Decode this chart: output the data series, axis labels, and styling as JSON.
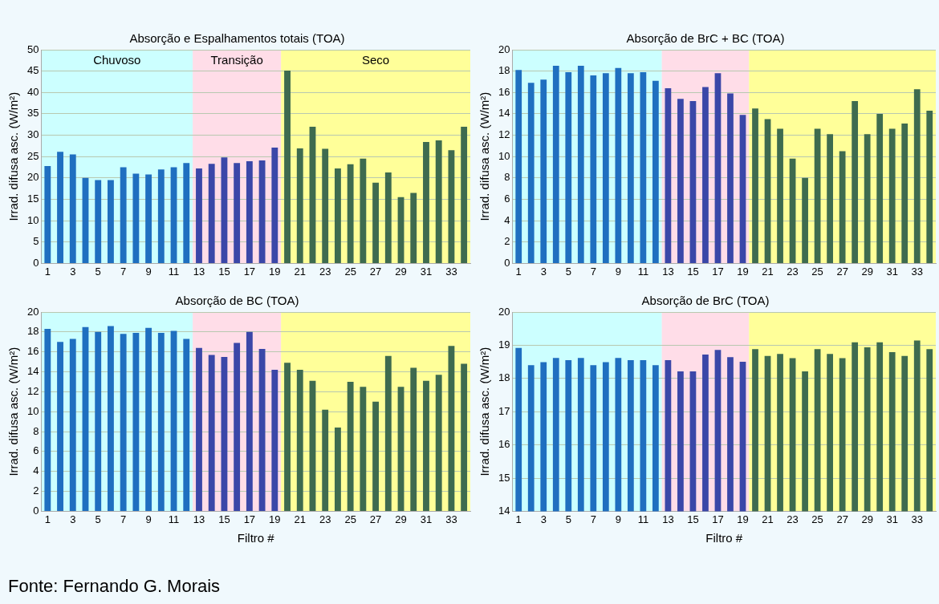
{
  "chart_data": [
    {
      "type": "bar",
      "title": "Absorção e Espalhamentos totais (TOA)",
      "ylabel": "Irrad. difusa asc. (W/m²)",
      "x": [
        1,
        2,
        3,
        4,
        5,
        6,
        7,
        8,
        9,
        10,
        11,
        12,
        13,
        14,
        15,
        16,
        17,
        18,
        19,
        20,
        21,
        22,
        23,
        24,
        25,
        26,
        27,
        28,
        29,
        30,
        31,
        32,
        33,
        34
      ],
      "values": [
        22.8,
        26.1,
        25.5,
        20.0,
        19.5,
        19.5,
        22.5,
        21.0,
        20.8,
        22.0,
        22.5,
        23.5,
        22.2,
        23.3,
        24.8,
        23.5,
        23.9,
        24.1,
        27.1,
        45.1,
        26.9,
        32.0,
        26.8,
        22.2,
        23.2,
        24.5,
        18.9,
        21.3,
        15.5,
        16.5,
        28.4,
        28.8,
        26.5,
        32.0
      ],
      "colors": [
        "#1f6fc0",
        "#1f6fc0",
        "#1f6fc0",
        "#1f6fc0",
        "#1f6fc0",
        "#1f6fc0",
        "#1f6fc0",
        "#1f6fc0",
        "#1f6fc0",
        "#1f6fc0",
        "#1f6fc0",
        "#1f6fc0",
        "#3a47a8",
        "#3a47a8",
        "#3a47a8",
        "#3a47a8",
        "#3a47a8",
        "#3a47a8",
        "#3a47a8",
        "#3e6b4f",
        "#3e6b4f",
        "#3e6b4f",
        "#3e6b4f",
        "#3e6b4f",
        "#3e6b4f",
        "#3e6b4f",
        "#3e6b4f",
        "#3e6b4f",
        "#3e6b4f",
        "#3e6b4f",
        "#3e6b4f",
        "#3e6b4f",
        "#3e6b4f",
        "#3e6b4f"
      ],
      "xlim": [
        0.5,
        34.5
      ],
      "xticks": [
        1,
        3,
        5,
        7,
        9,
        11,
        13,
        15,
        17,
        19,
        21,
        23,
        25,
        27,
        29,
        31,
        33
      ],
      "ylim": [
        0,
        50
      ],
      "yticks": [
        0,
        5,
        10,
        15,
        20,
        25,
        30,
        35,
        40,
        45,
        50
      ],
      "grid": "y",
      "legend": false,
      "bands": [
        {
          "axis": "x",
          "from": 0.5,
          "to": 12.5,
          "label": "Chuvoso",
          "color": "#ccffff"
        },
        {
          "axis": "x",
          "from": 12.5,
          "to": 19.5,
          "label": "Transição",
          "color": "#ffdde8"
        },
        {
          "axis": "x",
          "from": 19.5,
          "to": 34.5,
          "label": "Seco",
          "color": "#ffff99"
        }
      ]
    },
    {
      "type": "bar",
      "title": "Absorção de BrC + BC (TOA)",
      "ylabel": "Irrad. difusa asc. (W/m²)",
      "x": [
        1,
        2,
        3,
        4,
        5,
        6,
        7,
        8,
        9,
        10,
        11,
        12,
        13,
        14,
        15,
        16,
        17,
        18,
        19,
        20,
        21,
        22,
        23,
        24,
        25,
        26,
        27,
        28,
        29,
        30,
        31,
        32,
        33,
        34
      ],
      "values": [
        18.1,
        16.9,
        17.2,
        18.5,
        17.9,
        18.5,
        17.6,
        17.8,
        18.3,
        17.8,
        17.9,
        17.1,
        16.4,
        15.4,
        15.2,
        16.5,
        17.8,
        15.9,
        13.9,
        14.5,
        13.5,
        12.6,
        9.8,
        8.0,
        12.6,
        12.1,
        10.5,
        15.2,
        12.1,
        14.0,
        12.6,
        13.1,
        16.3,
        14.3
      ],
      "colors": [
        "#1f6fc0",
        "#1f6fc0",
        "#1f6fc0",
        "#1f6fc0",
        "#1f6fc0",
        "#1f6fc0",
        "#1f6fc0",
        "#1f6fc0",
        "#1f6fc0",
        "#1f6fc0",
        "#1f6fc0",
        "#1f6fc0",
        "#3a47a8",
        "#3a47a8",
        "#3a47a8",
        "#3a47a8",
        "#3a47a8",
        "#3a47a8",
        "#3a47a8",
        "#3e6b4f",
        "#3e6b4f",
        "#3e6b4f",
        "#3e6b4f",
        "#3e6b4f",
        "#3e6b4f",
        "#3e6b4f",
        "#3e6b4f",
        "#3e6b4f",
        "#3e6b4f",
        "#3e6b4f",
        "#3e6b4f",
        "#3e6b4f",
        "#3e6b4f",
        "#3e6b4f"
      ],
      "xlim": [
        0.5,
        34.5
      ],
      "xticks": [
        1,
        3,
        5,
        7,
        9,
        11,
        13,
        15,
        17,
        19,
        21,
        23,
        25,
        27,
        29,
        31,
        33
      ],
      "ylim": [
        0,
        20
      ],
      "yticks": [
        0,
        2,
        4,
        6,
        8,
        10,
        12,
        14,
        16,
        18,
        20
      ],
      "grid": "y",
      "legend": false,
      "bands": [
        {
          "axis": "x",
          "from": 0.5,
          "to": 12.5,
          "color": "#ccffff"
        },
        {
          "axis": "x",
          "from": 12.5,
          "to": 19.5,
          "color": "#ffdde8"
        },
        {
          "axis": "x",
          "from": 19.5,
          "to": 34.5,
          "color": "#ffff99"
        }
      ]
    },
    {
      "type": "bar",
      "title": "Absorção de BC (TOA)",
      "ylabel": "Irrad. difusa asc. (W/m²)",
      "xlabel": "Filtro #",
      "x": [
        1,
        2,
        3,
        4,
        5,
        6,
        7,
        8,
        9,
        10,
        11,
        12,
        13,
        14,
        15,
        16,
        17,
        18,
        19,
        20,
        21,
        22,
        23,
        24,
        25,
        26,
        27,
        28,
        29,
        30,
        31,
        32,
        33,
        34
      ],
      "values": [
        18.3,
        17.0,
        17.3,
        18.5,
        18.0,
        18.6,
        17.8,
        17.9,
        18.4,
        17.9,
        18.1,
        17.3,
        16.4,
        15.7,
        15.5,
        16.9,
        18.0,
        16.3,
        14.2,
        14.9,
        14.2,
        13.1,
        10.2,
        8.4,
        13.0,
        12.5,
        11.0,
        15.6,
        12.5,
        14.4,
        13.1,
        13.7,
        16.6,
        14.8
      ],
      "colors": [
        "#1f6fc0",
        "#1f6fc0",
        "#1f6fc0",
        "#1f6fc0",
        "#1f6fc0",
        "#1f6fc0",
        "#1f6fc0",
        "#1f6fc0",
        "#1f6fc0",
        "#1f6fc0",
        "#1f6fc0",
        "#1f6fc0",
        "#3a47a8",
        "#3a47a8",
        "#3a47a8",
        "#3a47a8",
        "#3a47a8",
        "#3a47a8",
        "#3a47a8",
        "#3e6b4f",
        "#3e6b4f",
        "#3e6b4f",
        "#3e6b4f",
        "#3e6b4f",
        "#3e6b4f",
        "#3e6b4f",
        "#3e6b4f",
        "#3e6b4f",
        "#3e6b4f",
        "#3e6b4f",
        "#3e6b4f",
        "#3e6b4f",
        "#3e6b4f",
        "#3e6b4f"
      ],
      "xlim": [
        0.5,
        34.5
      ],
      "xticks": [
        1,
        3,
        5,
        7,
        9,
        11,
        13,
        15,
        17,
        19,
        21,
        23,
        25,
        27,
        29,
        31,
        33
      ],
      "ylim": [
        0,
        20
      ],
      "yticks": [
        0,
        2,
        4,
        6,
        8,
        10,
        12,
        14,
        16,
        18,
        20
      ],
      "grid": "y",
      "legend": false,
      "bands": [
        {
          "axis": "x",
          "from": 0.5,
          "to": 12.5,
          "color": "#ccffff"
        },
        {
          "axis": "x",
          "from": 12.5,
          "to": 19.5,
          "color": "#ffdde8"
        },
        {
          "axis": "x",
          "from": 19.5,
          "to": 34.5,
          "color": "#ffff99"
        }
      ],
      "annotations": [
        "Fonte: Fernando G. Morais"
      ]
    },
    {
      "type": "bar",
      "title": "Absorção de BrC (TOA)",
      "ylabel": "Irrad. difusa asc. (W/m²)",
      "xlabel": "Filtro #",
      "x": [
        1,
        2,
        3,
        4,
        5,
        6,
        7,
        8,
        9,
        10,
        11,
        12,
        13,
        14,
        15,
        16,
        17,
        18,
        19,
        20,
        21,
        22,
        23,
        24,
        25,
        26,
        27,
        28,
        29,
        30,
        31,
        32,
        33,
        34
      ],
      "values": [
        18.92,
        18.4,
        18.49,
        18.62,
        18.55,
        18.62,
        18.4,
        18.49,
        18.62,
        18.55,
        18.55,
        18.4,
        18.55,
        18.21,
        18.21,
        18.72,
        18.86,
        18.64,
        18.5,
        18.88,
        18.68,
        18.74,
        18.61,
        18.21,
        18.88,
        18.74,
        18.61,
        19.09,
        18.94,
        19.09,
        18.79,
        18.68,
        19.14,
        18.88
      ],
      "colors": [
        "#1f6fc0",
        "#1f6fc0",
        "#1f6fc0",
        "#1f6fc0",
        "#1f6fc0",
        "#1f6fc0",
        "#1f6fc0",
        "#1f6fc0",
        "#1f6fc0",
        "#1f6fc0",
        "#1f6fc0",
        "#1f6fc0",
        "#3a47a8",
        "#3a47a8",
        "#3a47a8",
        "#3a47a8",
        "#3a47a8",
        "#3a47a8",
        "#3a47a8",
        "#3e6b4f",
        "#3e6b4f",
        "#3e6b4f",
        "#3e6b4f",
        "#3e6b4f",
        "#3e6b4f",
        "#3e6b4f",
        "#3e6b4f",
        "#3e6b4f",
        "#3e6b4f",
        "#3e6b4f",
        "#3e6b4f",
        "#3e6b4f",
        "#3e6b4f",
        "#3e6b4f"
      ],
      "xlim": [
        0.5,
        34.5
      ],
      "xticks": [
        1,
        3,
        5,
        7,
        9,
        11,
        13,
        15,
        17,
        19,
        21,
        23,
        25,
        27,
        29,
        31,
        33
      ],
      "ylim": [
        14,
        20
      ],
      "yticks": [
        14,
        15,
        16,
        17,
        18,
        19,
        20
      ],
      "grid": "y",
      "legend": false,
      "bands": [
        {
          "axis": "x",
          "from": 0.5,
          "to": 12.5,
          "color": "#ccffff"
        },
        {
          "axis": "x",
          "from": 12.5,
          "to": 19.5,
          "color": "#ffdde8"
        },
        {
          "axis": "x",
          "from": 19.5,
          "to": 34.5,
          "color": "#ffff99"
        }
      ]
    }
  ]
}
